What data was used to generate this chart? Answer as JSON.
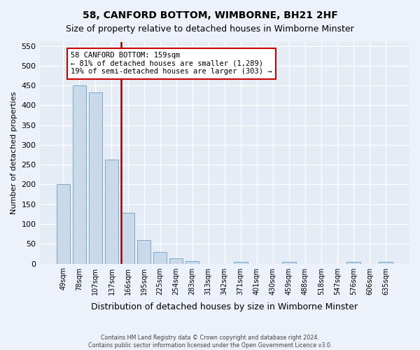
{
  "title": "58, CANFORD BOTTOM, WIMBORNE, BH21 2HF",
  "subtitle": "Size of property relative to detached houses in Wimborne Minster",
  "xlabel": "Distribution of detached houses by size in Wimborne Minster",
  "ylabel": "Number of detached properties",
  "footer_line1": "Contains HM Land Registry data © Crown copyright and database right 2024.",
  "footer_line2": "Contains public sector information licensed under the Open Government Licence v3.0.",
  "categories": [
    "49sqm",
    "78sqm",
    "107sqm",
    "137sqm",
    "166sqm",
    "195sqm",
    "225sqm",
    "254sqm",
    "283sqm",
    "313sqm",
    "342sqm",
    "371sqm",
    "401sqm",
    "430sqm",
    "459sqm",
    "488sqm",
    "518sqm",
    "547sqm",
    "576sqm",
    "606sqm",
    "635sqm"
  ],
  "values": [
    200,
    450,
    432,
    263,
    128,
    60,
    30,
    13,
    7,
    0,
    0,
    5,
    0,
    0,
    5,
    0,
    0,
    0,
    5,
    0,
    5
  ],
  "bar_color": "#c9d9ea",
  "bar_edge_color": "#7aaac8",
  "vline_pos": 3.58,
  "vline_color": "#990000",
  "annotation_text": "58 CANFORD BOTTOM: 159sqm\n← 81% of detached houses are smaller (1,289)\n19% of semi-detached houses are larger (303) →",
  "annotation_box_facecolor": "#ffffff",
  "annotation_box_edgecolor": "#cc0000",
  "ylim_max": 560,
  "yticks": [
    0,
    50,
    100,
    150,
    200,
    250,
    300,
    350,
    400,
    450,
    500,
    550
  ],
  "fig_bg_color": "#edf1f9",
  "axes_bg_color": "#e5ecf5",
  "grid_color": "#ffffff",
  "title_fontsize": 10,
  "subtitle_fontsize": 9
}
